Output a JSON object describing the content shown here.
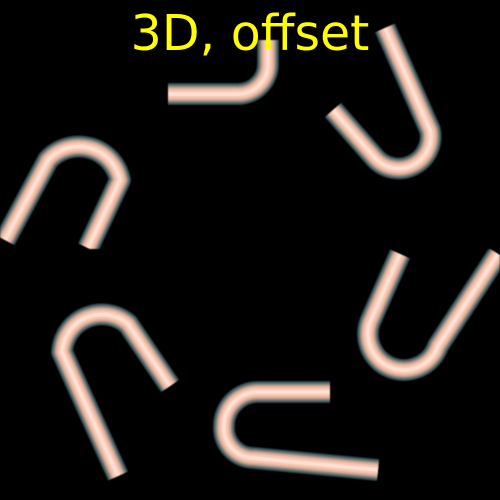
{
  "title": "3D, offset",
  "colors": {
    "background": "#000000",
    "title": "#ffff00",
    "tube_core": "#f8c5ae",
    "tube_edge": "#2e4f56"
  },
  "shapes": [
    "u-tube-top-center",
    "u-tube-top-right",
    "u-tube-left",
    "u-tube-right",
    "u-tube-bottom-left",
    "u-tube-bottom-center"
  ]
}
